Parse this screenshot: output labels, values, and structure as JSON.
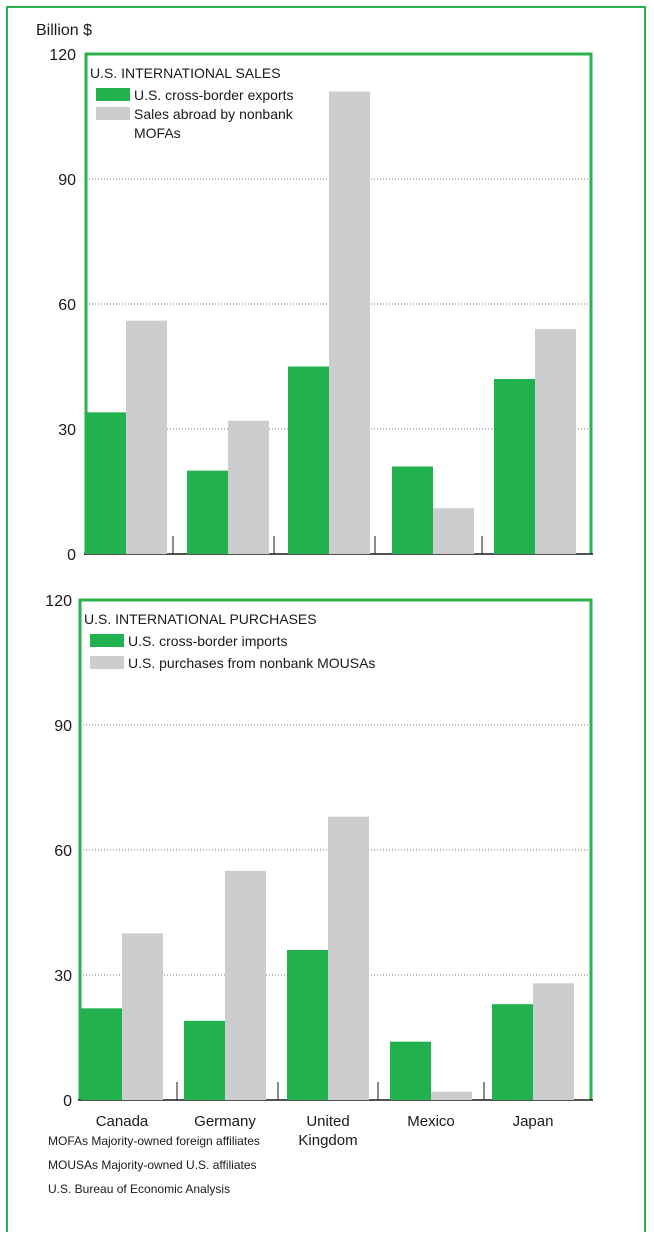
{
  "colors": {
    "green": "#21b14f",
    "gray": "#cdcdcf",
    "frame": "#2bb24c"
  },
  "y_unit": "Billion $",
  "chart_data": [
    {
      "type": "bar",
      "title": "U.S. INTERNATIONAL SALES",
      "ylabel": "Billion $",
      "ylim": [
        0,
        120
      ],
      "yticks": [
        0,
        30,
        60,
        90,
        120
      ],
      "grid": true,
      "categories": [
        "Canada",
        "Germany",
        "United Kingdom",
        "Mexico",
        "Japan"
      ],
      "series": [
        {
          "name": "U.S. cross-border exports",
          "values": [
            34,
            20,
            45,
            21,
            42
          ]
        },
        {
          "name": "Sales abroad by nonbank MOFAs",
          "values": [
            56,
            32,
            111,
            11,
            54
          ]
        }
      ],
      "legend_lines": [
        [
          "U.S. cross-border exports"
        ],
        [
          "Sales abroad by nonbank",
          "MOFAs"
        ]
      ]
    },
    {
      "type": "bar",
      "title": "U.S. INTERNATIONAL PURCHASES",
      "ylim": [
        0,
        120
      ],
      "yticks": [
        0,
        30,
        60,
        90,
        120
      ],
      "grid": true,
      "categories": [
        "Canada",
        "Germany",
        "United Kingdom",
        "Mexico",
        "Japan"
      ],
      "category_label_lines": [
        [
          "Canada"
        ],
        [
          "Germany"
        ],
        [
          "United",
          "Kingdom"
        ],
        [
          "Mexico"
        ],
        [
          "Japan"
        ]
      ],
      "series": [
        {
          "name": "U.S. cross-border imports",
          "values": [
            22,
            19,
            36,
            14,
            23
          ]
        },
        {
          "name": "U.S. purchases from nonbank MOUSAs",
          "values": [
            40,
            55,
            68,
            2,
            28
          ]
        }
      ],
      "legend_lines": [
        [
          "U.S. cross-border imports"
        ],
        [
          "U.S. purchases from nonbank MOUSAs"
        ]
      ]
    }
  ],
  "notes": [
    "MOFAs  Majority-owned foreign affiliates",
    "MOUSAs  Majority-owned U.S. affiliates",
    "U.S. Bureau of Economic Analysis"
  ]
}
